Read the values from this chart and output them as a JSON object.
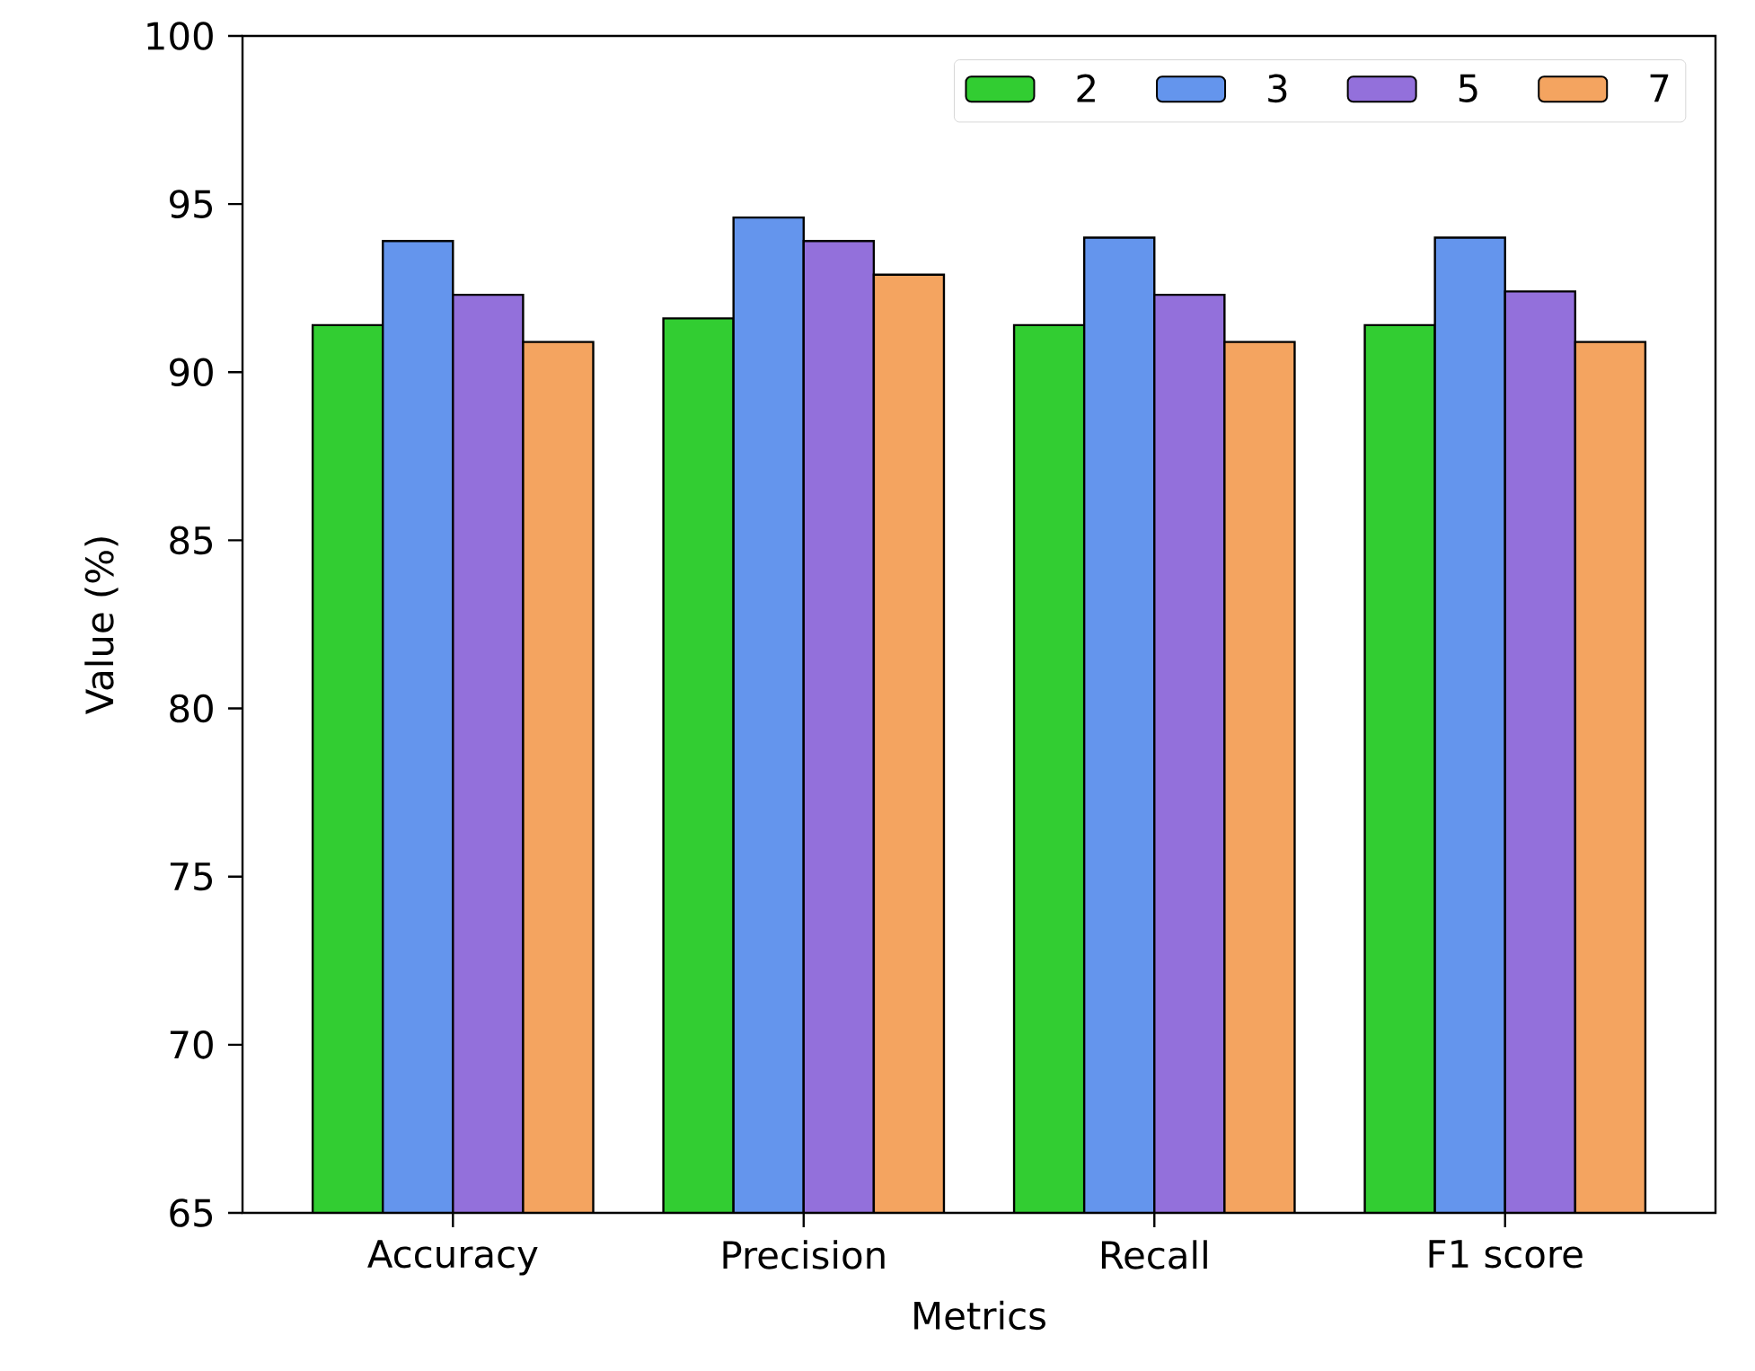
{
  "chart_data": {
    "type": "bar",
    "xlabel": "Metrics",
    "ylabel": "Value (%)",
    "categories": [
      "Accuracy",
      "Precision",
      "Recall",
      "F1 score"
    ],
    "series": [
      {
        "name": "2",
        "color": "#32cd32",
        "values": [
          91.4,
          91.6,
          91.4,
          91.4
        ]
      },
      {
        "name": "3",
        "color": "#6495ed",
        "values": [
          93.9,
          94.6,
          94.0,
          94.0
        ]
      },
      {
        "name": "5",
        "color": "#9370db",
        "values": [
          92.3,
          93.9,
          92.3,
          92.4
        ]
      },
      {
        "name": "7",
        "color": "#f4a460",
        "values": [
          90.9,
          92.9,
          90.9,
          90.9
        ]
      }
    ],
    "ylim": [
      65,
      100
    ],
    "yticks": [
      65,
      70,
      75,
      80,
      85,
      90,
      95,
      100
    ],
    "legend": "top right",
    "grid": false
  }
}
